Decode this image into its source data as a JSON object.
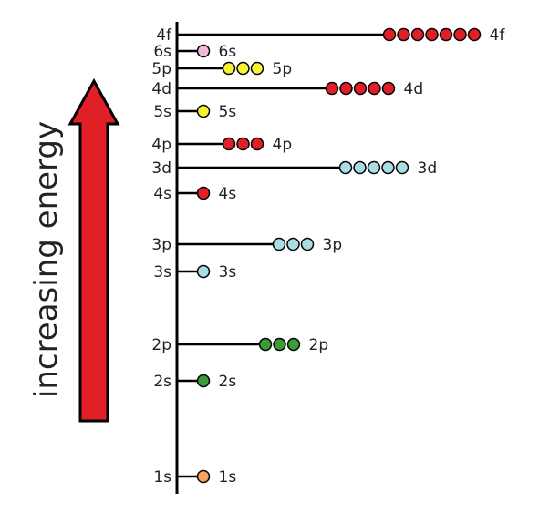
{
  "axis_label": "increasing energy",
  "colors": {
    "arrow_fill": "#e01f26",
    "line": "#000000",
    "red": "#e01f26",
    "pink": "#f2b8d6",
    "yellow": "#f7f233",
    "light_blue": "#a8dde2",
    "green": "#3c9a3a",
    "orange": "#f4a460"
  },
  "levels": [
    {
      "name": "4f",
      "left_label": "4f",
      "right_label": "4f",
      "electrons": 7,
      "color": "red"
    },
    {
      "name": "6s",
      "left_label": "6s",
      "right_label": "6s",
      "electrons": 1,
      "color": "pink"
    },
    {
      "name": "5p",
      "left_label": "5p",
      "right_label": "5p",
      "electrons": 3,
      "color": "yellow"
    },
    {
      "name": "4d",
      "left_label": "4d",
      "right_label": "4d",
      "electrons": 5,
      "color": "red"
    },
    {
      "name": "5s",
      "left_label": "5s",
      "right_label": "5s",
      "electrons": 1,
      "color": "yellow"
    },
    {
      "name": "4p",
      "left_label": "4p",
      "right_label": "4p",
      "electrons": 3,
      "color": "red"
    },
    {
      "name": "3d",
      "left_label": "3d",
      "right_label": "3d",
      "electrons": 5,
      "color": "light_blue"
    },
    {
      "name": "4s",
      "left_label": "4s",
      "right_label": "4s",
      "electrons": 1,
      "color": "red"
    },
    {
      "name": "3p",
      "left_label": "3p",
      "right_label": "3p",
      "electrons": 3,
      "color": "light_blue"
    },
    {
      "name": "3s",
      "left_label": "3s",
      "right_label": "3s",
      "electrons": 1,
      "color": "light_blue"
    },
    {
      "name": "2p",
      "left_label": "2p",
      "right_label": "2p",
      "electrons": 3,
      "color": "green"
    },
    {
      "name": "2s",
      "left_label": "2s",
      "right_label": "2s",
      "electrons": 1,
      "color": "green"
    },
    {
      "name": "1s",
      "left_label": "1s",
      "right_label": "1s",
      "electrons": 1,
      "color": "orange"
    }
  ]
}
